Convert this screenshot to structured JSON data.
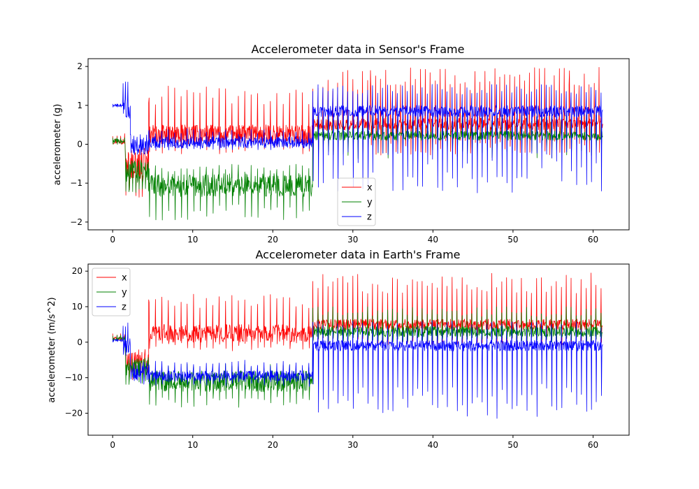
{
  "chart_data": [
    {
      "type": "line",
      "title": "Accelerometer data in Sensor's Frame",
      "xlabel": "",
      "ylabel": "accelerometer (g)",
      "xlim": [
        -3.07,
        64.5
      ],
      "ylim": [
        -2.2,
        2.2
      ],
      "xticks": [
        0,
        10,
        20,
        30,
        40,
        50,
        60
      ],
      "yticks": [
        -2,
        -1,
        0,
        1,
        2
      ],
      "tick_labels_x": [
        "0",
        "10",
        "20",
        "30",
        "40",
        "50",
        "60"
      ],
      "tick_labels_y": [
        "−2",
        "−1",
        "0",
        "1",
        "2"
      ],
      "legend": {
        "placement": "lower-center",
        "entries": [
          "x",
          "y",
          "z"
        ]
      },
      "grid": false,
      "series": [
        {
          "name": "x",
          "color": "#ff0000",
          "segments": [
            {
              "t0": 0.0,
              "t1": 1.6,
              "base": 0.08,
              "amp": 0.08,
              "spike_up": 0.2,
              "spike_down": 0.1,
              "period": 0.5
            },
            {
              "t0": 1.6,
              "t1": 4.5,
              "base": -0.5,
              "amp": 0.4,
              "spike_up": 0.3,
              "spike_down": 0.9,
              "period": 0.4
            },
            {
              "t0": 4.5,
              "t1": 25.0,
              "base": 0.25,
              "amp": 0.25,
              "spike_up": 1.25,
              "spike_down": 0.5,
              "period": 0.8
            },
            {
              "t0": 25.0,
              "t1": 32.2,
              "base": 0.5,
              "amp": 0.15,
              "spike_up": 1.45,
              "spike_down": 0.8,
              "period": 0.62
            },
            {
              "t0": 32.2,
              "t1": 57.0,
              "base": 0.52,
              "amp": 0.15,
              "spike_up": 1.45,
              "spike_down": 0.8,
              "period": 0.62
            },
            {
              "t0": 57.0,
              "t1": 61.2,
              "base": 0.55,
              "amp": 0.15,
              "spike_up": 1.45,
              "spike_down": 0.8,
              "period": 0.62
            }
          ]
        },
        {
          "name": "y",
          "color": "#008000",
          "segments": [
            {
              "t0": 0.0,
              "t1": 1.6,
              "base": 0.08,
              "amp": 0.06,
              "spike_up": 0.1,
              "spike_down": 0.1,
              "period": 0.5
            },
            {
              "t0": 1.6,
              "t1": 4.5,
              "base": -0.7,
              "amp": 0.3,
              "spike_up": 0.3,
              "spike_down": 0.6,
              "period": 0.4
            },
            {
              "t0": 4.5,
              "t1": 25.0,
              "base": -1.05,
              "amp": 0.3,
              "spike_up": 0.55,
              "spike_down": 0.9,
              "period": 0.8
            },
            {
              "t0": 25.0,
              "t1": 61.2,
              "base": 0.22,
              "amp": 0.12,
              "spike_up": 0.55,
              "spike_down": 0.6,
              "period": 0.62
            }
          ]
        },
        {
          "name": "z",
          "color": "#0000ff",
          "segments": [
            {
              "t0": 0.0,
              "t1": 1.3,
              "base": 1.0,
              "amp": 0.03,
              "spike_up": 0.05,
              "spike_down": 0.05,
              "period": 0.5
            },
            {
              "t0": 1.3,
              "t1": 2.2,
              "base": 0.95,
              "amp": 0.3,
              "spike_up": 0.7,
              "spike_down": 0.3,
              "period": 0.3
            },
            {
              "t0": 2.2,
              "t1": 4.5,
              "base": -0.05,
              "amp": 0.2,
              "spike_up": 0.3,
              "spike_down": 0.3,
              "period": 0.4
            },
            {
              "t0": 4.5,
              "t1": 25.0,
              "base": 0.05,
              "amp": 0.15,
              "spike_up": 0.35,
              "spike_down": 0.2,
              "period": 0.8
            },
            {
              "t0": 25.0,
              "t1": 61.2,
              "base": 0.85,
              "amp": 0.15,
              "spike_up": 0.7,
              "spike_down": 2.1,
              "period": 0.62
            }
          ]
        }
      ]
    },
    {
      "type": "line",
      "title": "Accelerometer data in Earth's Frame",
      "xlabel": "",
      "ylabel": "accelerometer (m/s^2)",
      "xlim": [
        -3.07,
        64.5
      ],
      "ylim": [
        -26.2,
        22.0
      ],
      "xticks": [
        0,
        10,
        20,
        30,
        40,
        50,
        60
      ],
      "yticks": [
        -20,
        -10,
        0,
        10,
        20
      ],
      "tick_labels_x": [
        "0",
        "10",
        "20",
        "30",
        "40",
        "50",
        "60"
      ],
      "tick_labels_y": [
        "−20",
        "−10",
        "0",
        "10",
        "20"
      ],
      "legend": {
        "placement": "upper-left",
        "entries": [
          "x",
          "y",
          "z"
        ]
      },
      "grid": false,
      "series": [
        {
          "name": "x",
          "color": "#ff0000",
          "segments": [
            {
              "t0": 0.0,
              "t1": 1.6,
              "base": 1.0,
              "amp": 0.5,
              "spike_up": 1.5,
              "spike_down": 1.0,
              "period": 0.5
            },
            {
              "t0": 1.6,
              "t1": 4.5,
              "base": -6.0,
              "amp": 3.0,
              "spike_up": 4.0,
              "spike_down": 6.0,
              "period": 0.4
            },
            {
              "t0": 4.5,
              "t1": 25.0,
              "base": 2.5,
              "amp": 2.5,
              "spike_up": 11.5,
              "spike_down": 5.0,
              "period": 0.8
            },
            {
              "t0": 25.0,
              "t1": 61.2,
              "base": 5.0,
              "amp": 1.5,
              "spike_up": 14.5,
              "spike_down": 6.0,
              "period": 0.62
            }
          ]
        },
        {
          "name": "y",
          "color": "#008000",
          "segments": [
            {
              "t0": 0.0,
              "t1": 1.6,
              "base": 1.0,
              "amp": 0.5,
              "spike_up": 1.0,
              "spike_down": 1.0,
              "period": 0.5
            },
            {
              "t0": 1.6,
              "t1": 4.5,
              "base": -7.0,
              "amp": 2.5,
              "spike_up": 3.0,
              "spike_down": 5.0,
              "period": 0.4
            },
            {
              "t0": 4.5,
              "t1": 25.0,
              "base": -11.0,
              "amp": 3.0,
              "spike_up": 5.0,
              "spike_down": 7.5,
              "period": 0.8
            },
            {
              "t0": 25.0,
              "t1": 61.2,
              "base": 3.0,
              "amp": 1.5,
              "spike_up": 7.0,
              "spike_down": 3.0,
              "period": 0.62
            }
          ]
        },
        {
          "name": "z",
          "color": "#0000ff",
          "segments": [
            {
              "t0": 0.0,
              "t1": 1.3,
              "base": 0.5,
              "amp": 0.3,
              "spike_up": 0.5,
              "spike_down": 0.5,
              "period": 0.5
            },
            {
              "t0": 1.3,
              "t1": 2.2,
              "base": -1.0,
              "amp": 2.0,
              "spike_up": 7.0,
              "spike_down": 3.0,
              "period": 0.3
            },
            {
              "t0": 2.2,
              "t1": 4.5,
              "base": -8.5,
              "amp": 2.0,
              "spike_up": 3.0,
              "spike_down": 3.5,
              "period": 0.4
            },
            {
              "t0": 4.5,
              "t1": 25.0,
              "base": -9.5,
              "amp": 1.5,
              "spike_up": 4.5,
              "spike_down": 3.0,
              "period": 0.8
            },
            {
              "t0": 25.0,
              "t1": 61.2,
              "base": -1.0,
              "amp": 1.5,
              "spike_up": 7.0,
              "spike_down": 20.5,
              "period": 0.62
            }
          ]
        }
      ]
    }
  ]
}
